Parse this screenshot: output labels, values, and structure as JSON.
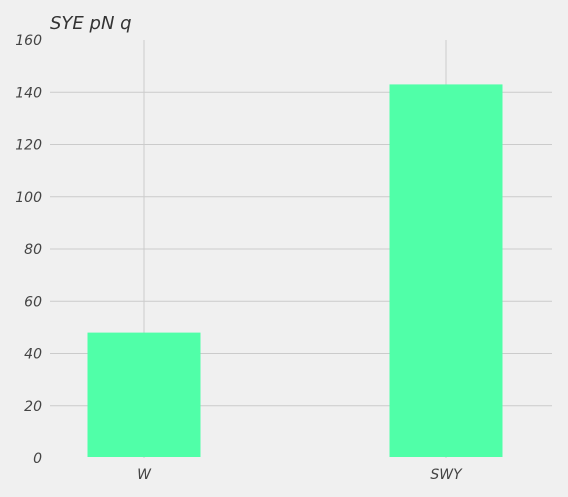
{
  "chart_data": {
    "type": "bar",
    "title": "SYE pN q",
    "categories": [
      "W",
      "SWY"
    ],
    "values": [
      48,
      143
    ],
    "ylim": [
      0,
      160
    ],
    "yticks": [
      0,
      20,
      40,
      60,
      80,
      100,
      120,
      140,
      160
    ],
    "grid": true,
    "bar_color": "#50ffa8",
    "grid_color": "#cbcbcb",
    "background": "#f0f0f0"
  }
}
